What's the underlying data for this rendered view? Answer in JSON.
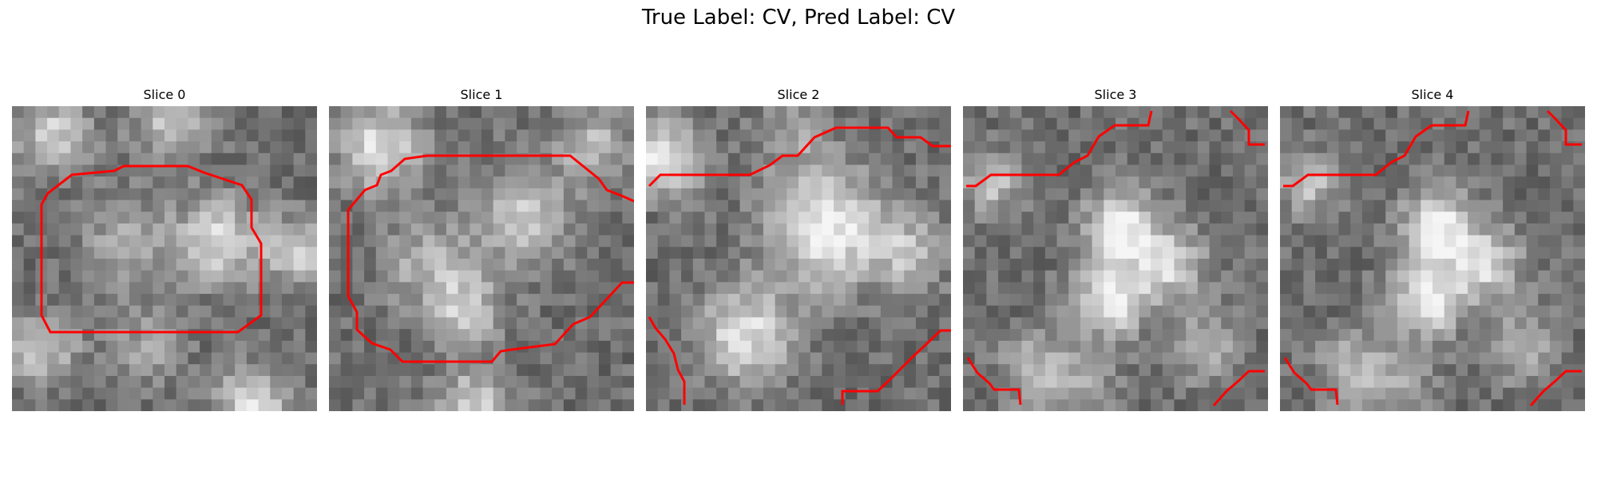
{
  "figure": {
    "title": "True Label: CV, Pred Label: CV"
  },
  "slices": [
    {
      "title": "Slice 0"
    },
    {
      "title": "Slice 1"
    },
    {
      "title": "Slice 2"
    },
    {
      "title": "Slice 3"
    },
    {
      "title": "Slice 4"
    }
  ],
  "contour_color": "#ff0000"
}
